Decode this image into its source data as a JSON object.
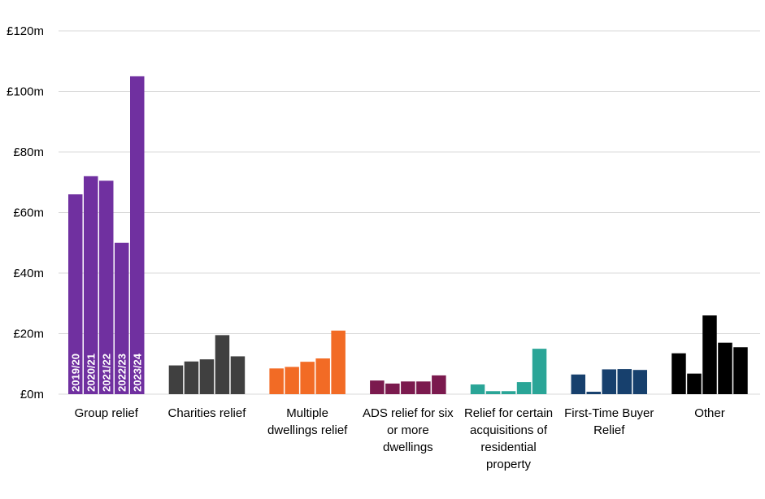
{
  "chart_data": {
    "type": "bar",
    "title": "",
    "xlabel": "",
    "ylabel": "",
    "ylim": [
      0,
      120
    ],
    "yticks": [
      0,
      20,
      40,
      60,
      80,
      100,
      120
    ],
    "ytick_labels": [
      "£0m",
      "£20m",
      "£40m",
      "£60m",
      "£80m",
      "£100m",
      "£120m"
    ],
    "years": [
      "2019/20",
      "2020/21",
      "2021/22",
      "2022/23",
      "2023/24"
    ],
    "grid": true,
    "groups": [
      {
        "name": "Group relief",
        "label_lines": [
          "Group relief"
        ],
        "color": "#7030A0",
        "values": [
          66,
          72,
          70.5,
          50,
          105
        ]
      },
      {
        "name": "Charities relief",
        "label_lines": [
          "Charities relief"
        ],
        "color": "#404040",
        "values": [
          9.5,
          10.8,
          11.5,
          19.5,
          12.5
        ]
      },
      {
        "name": "Multiple dwellings relief",
        "label_lines": [
          "Multiple",
          "dwellings relief"
        ],
        "color": "#F26B25",
        "values": [
          8.5,
          9,
          10.7,
          11.8,
          21
        ]
      },
      {
        "name": "ADS relief for six or more dwellings",
        "label_lines": [
          "ADS relief for six",
          "or more",
          "dwellings"
        ],
        "color": "#7B1A4E",
        "values": [
          4.5,
          3.5,
          4.2,
          4.2,
          6.2
        ]
      },
      {
        "name": "Relief for certain acquisitions of residential property",
        "label_lines": [
          "Relief for certain",
          "acquisitions of",
          "residential",
          "property"
        ],
        "color": "#2AA597",
        "values": [
          3.2,
          1,
          1,
          4,
          15
        ]
      },
      {
        "name": "First-Time Buyer Relief",
        "label_lines": [
          "First-Time Buyer",
          "Relief"
        ],
        "color": "#17406D",
        "values": [
          6.5,
          0.8,
          8.2,
          8.3,
          8
        ]
      },
      {
        "name": "Other",
        "label_lines": [
          "Other"
        ],
        "color": "#000000",
        "values": [
          13.5,
          6.8,
          26,
          17,
          15.5
        ]
      }
    ]
  }
}
